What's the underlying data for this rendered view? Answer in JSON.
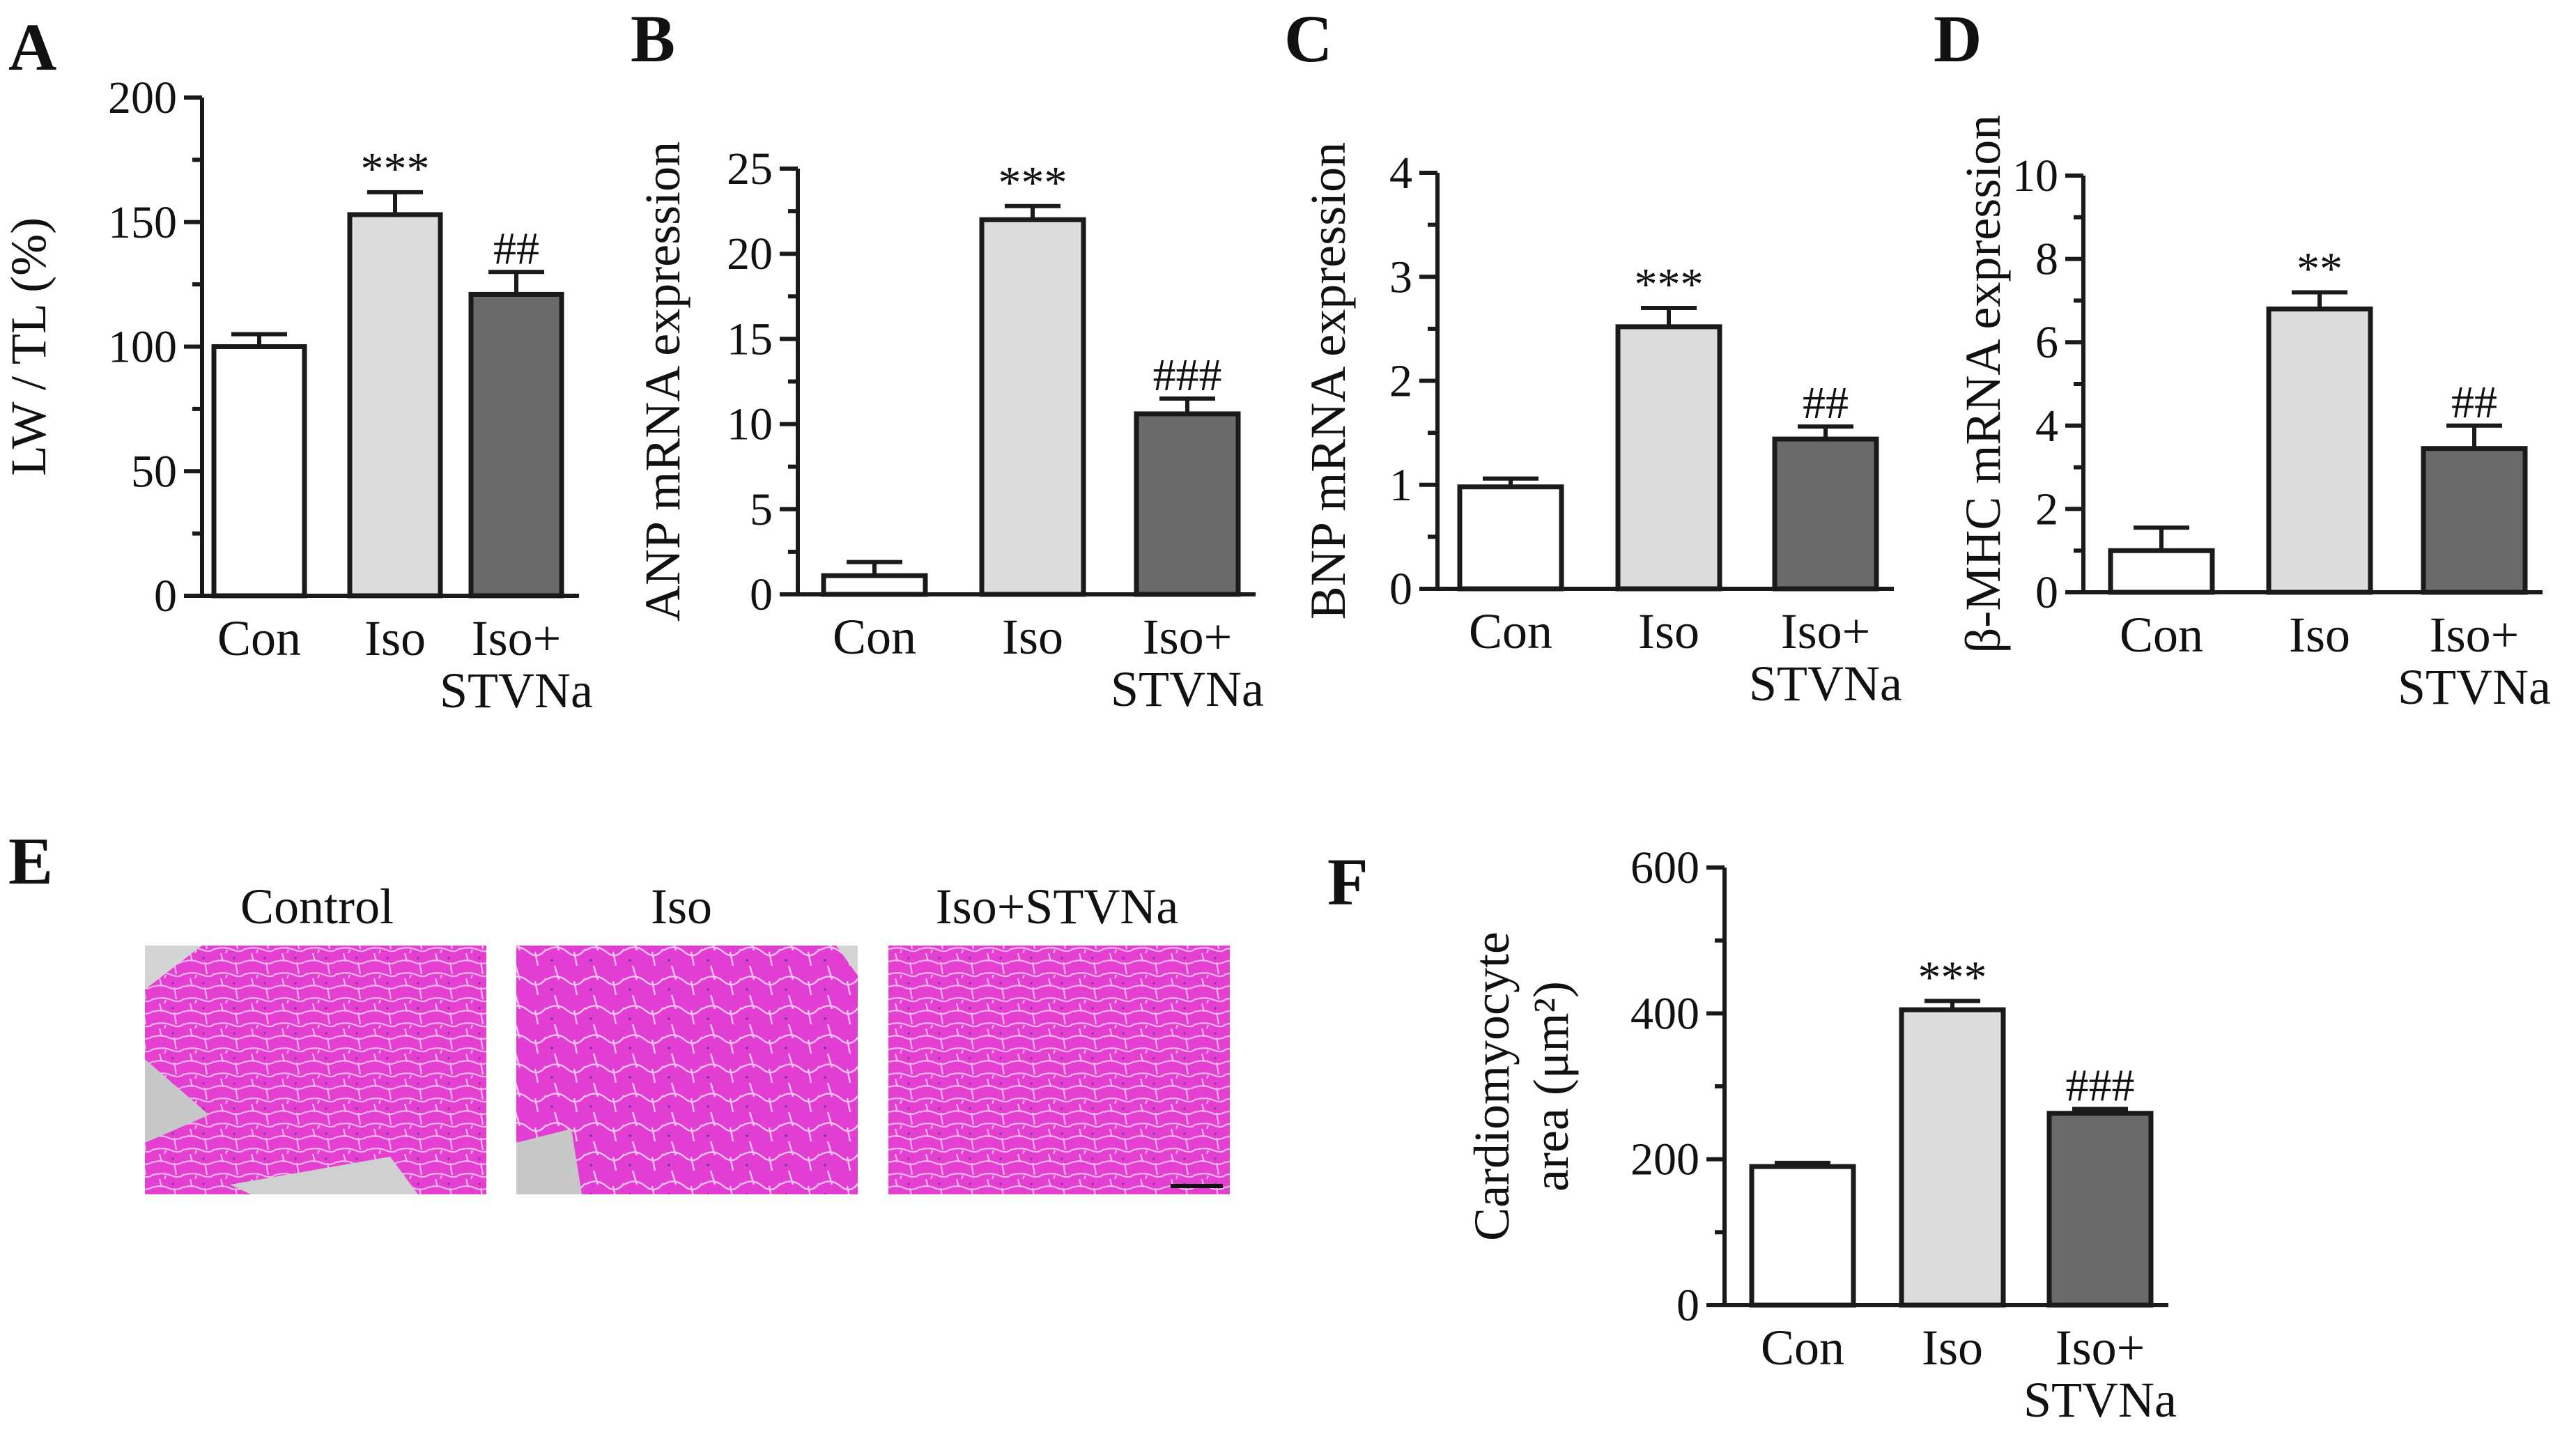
{
  "colors": {
    "Con": "#ffffff",
    "Iso": "#dcdcdc",
    "Iso+STVNa": "#6a6a6a"
  },
  "chart_data": [
    {
      "id": "A",
      "type": "bar",
      "ylabel": "LW / TL (%)",
      "categories": [
        [
          "Con"
        ],
        [
          "Iso"
        ],
        [
          "Iso+",
          "STVNa"
        ]
      ],
      "values": [
        100,
        153,
        121
      ],
      "errors": [
        5,
        9,
        9
      ],
      "annotations": [
        "",
        "***",
        "##"
      ],
      "ylim": [
        0,
        200
      ],
      "yticks": [
        "0",
        "50",
        "100",
        "150",
        "200"
      ]
    },
    {
      "id": "B",
      "type": "bar",
      "ylabel": "ANP mRNA expression",
      "categories": [
        [
          "Con"
        ],
        [
          "Iso"
        ],
        [
          "Iso+",
          "STVNa"
        ]
      ],
      "values": [
        1.1,
        22,
        10.6
      ],
      "errors": [
        0.8,
        0.8,
        0.9
      ],
      "annotations": [
        "",
        "***",
        "###"
      ],
      "ylim": [
        0,
        25
      ],
      "yticks": [
        "0",
        "5",
        "10",
        "15",
        "20",
        "25"
      ]
    },
    {
      "id": "C",
      "type": "bar",
      "ylabel": "BNP mRNA expression",
      "categories": [
        [
          "Con"
        ],
        [
          "Iso"
        ],
        [
          "Iso+",
          "STVNa"
        ]
      ],
      "values": [
        0.98,
        2.52,
        1.44
      ],
      "errors": [
        0.08,
        0.18,
        0.12
      ],
      "annotations": [
        "",
        "***",
        "##"
      ],
      "ylim": [
        0,
        4
      ],
      "yticks": [
        "0",
        "1",
        "2",
        "3",
        "4"
      ]
    },
    {
      "id": "D",
      "type": "bar",
      "ylabel": "β-MHC mRNA expression",
      "categories": [
        [
          "Con"
        ],
        [
          "Iso"
        ],
        [
          "Iso+",
          "STVNa"
        ]
      ],
      "values": [
        1.0,
        6.8,
        3.45
      ],
      "errors": [
        0.55,
        0.4,
        0.55
      ],
      "annotations": [
        "",
        "**",
        "##"
      ],
      "ylim": [
        0,
        10
      ],
      "yticks": [
        "0",
        "2",
        "4",
        "6",
        "8",
        "10"
      ]
    },
    {
      "id": "F",
      "type": "bar",
      "ylabel": [
        "Cardiomyocyte",
        "area (μm²)"
      ],
      "categories": [
        [
          "Con"
        ],
        [
          "Iso"
        ],
        [
          "Iso+",
          "STVNa"
        ]
      ],
      "values": [
        190,
        405,
        263
      ],
      "errors": [
        5,
        12,
        6
      ],
      "annotations": [
        "",
        "***",
        "###"
      ],
      "ylim": [
        0,
        600
      ],
      "yticks": [
        "0",
        "200",
        "400",
        "600"
      ]
    }
  ],
  "panelE": {
    "id": "E",
    "titles": [
      "Control",
      "Iso",
      "Iso+STVNa"
    ]
  }
}
